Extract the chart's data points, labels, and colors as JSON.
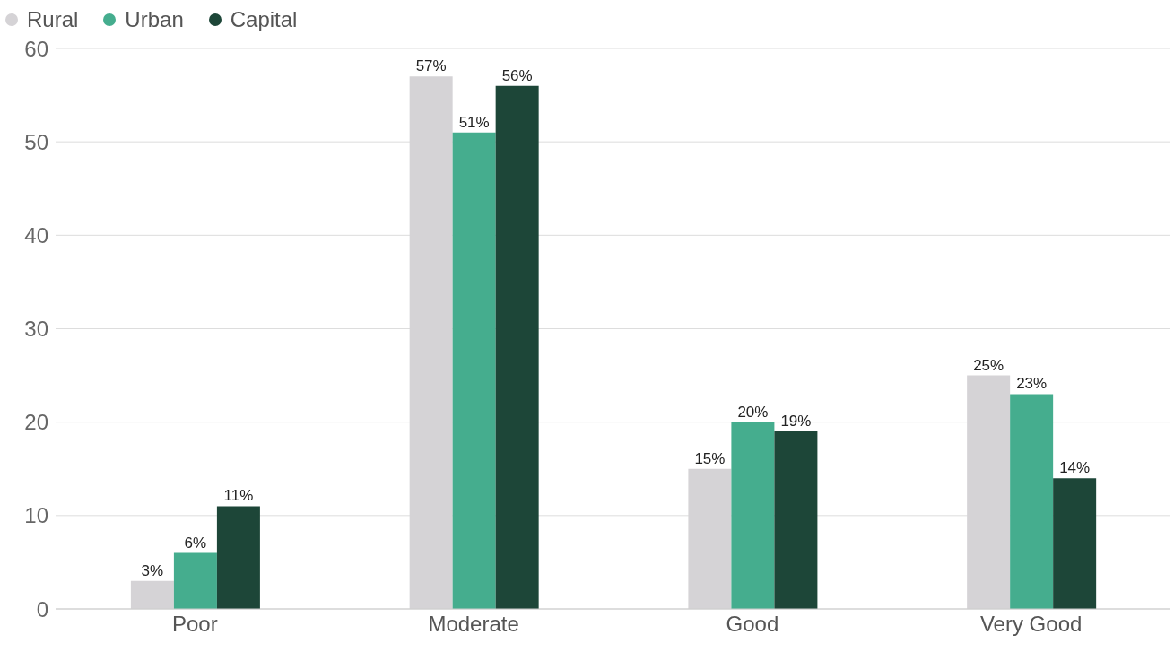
{
  "chart_data": {
    "type": "bar",
    "categories": [
      "Poor",
      "Moderate",
      "Good",
      "Very Good"
    ],
    "series": [
      {
        "name": "Rural",
        "color": "#d5d3d6",
        "values": [
          3,
          57,
          15,
          25
        ],
        "value_labels": [
          "3%",
          "57%",
          "15%",
          "25%"
        ]
      },
      {
        "name": "Urban",
        "color": "#45ad8e",
        "values": [
          6,
          51,
          20,
          23
        ],
        "value_labels": [
          "6%",
          "51%",
          "20%",
          "23%"
        ]
      },
      {
        "name": "Capital",
        "color": "#1d4638",
        "values": [
          11,
          56,
          19,
          14
        ],
        "value_labels": [
          "11%",
          "56%",
          "19%",
          "14%"
        ]
      }
    ],
    "ylim": [
      0,
      60
    ],
    "yticks": [
      0,
      10,
      20,
      30,
      40,
      50,
      60
    ],
    "grid": "y",
    "legend": "top left"
  }
}
